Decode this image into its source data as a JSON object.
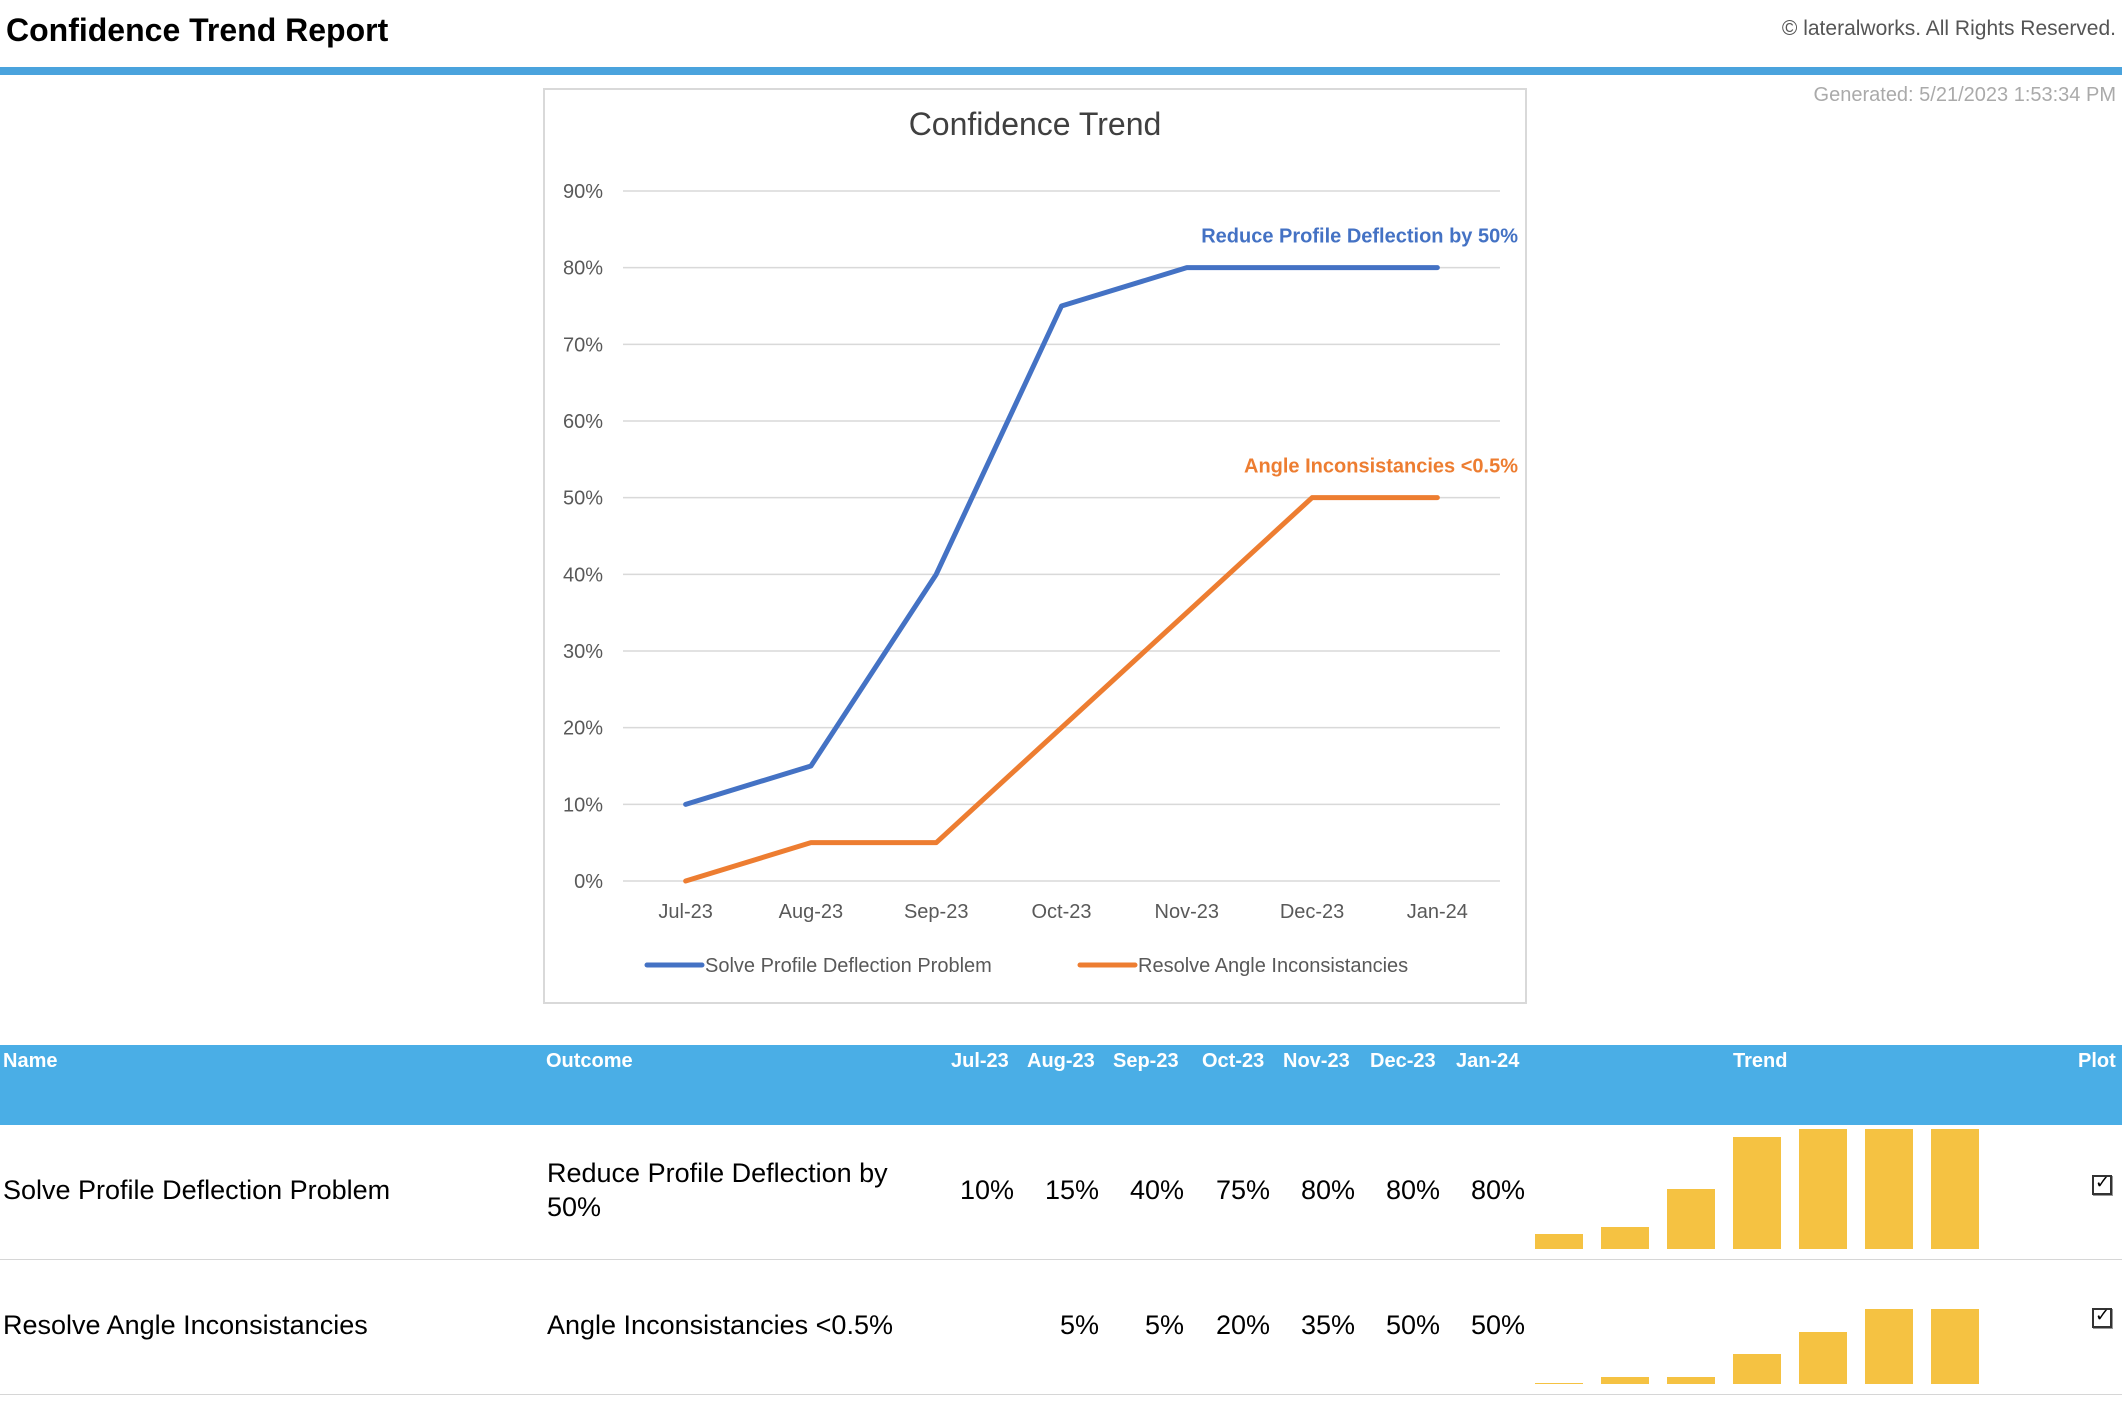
{
  "header": {
    "title": "Confidence Trend Report",
    "copyright": "© lateralworks. All Rights Reserved.",
    "generated": "Generated: 5/21/2023 1:53:34 PM"
  },
  "chart_data": {
    "type": "line",
    "title": "Confidence Trend",
    "categories": [
      "Jul-23",
      "Aug-23",
      "Sep-23",
      "Oct-23",
      "Nov-23",
      "Dec-23",
      "Jan-24"
    ],
    "ylim": [
      0,
      90
    ],
    "yticks": [
      "0%",
      "10%",
      "20%",
      "30%",
      "40%",
      "50%",
      "60%",
      "70%",
      "80%",
      "90%"
    ],
    "grid": true,
    "legend_position": "bottom",
    "series": [
      {
        "name": "Solve Profile Deflection Problem",
        "values": [
          10,
          15,
          40,
          75,
          80,
          80,
          80
        ],
        "color": "#4472c4",
        "end_label": "Reduce Profile Deflection by 50%"
      },
      {
        "name": "Resolve Angle Inconsistancies",
        "values": [
          0,
          5,
          5,
          20,
          35,
          50,
          50
        ],
        "color": "#ed7d31",
        "end_label": "Angle Inconsistancies <0.5%"
      }
    ]
  },
  "table": {
    "headers": {
      "name": "Name",
      "outcome": "Outcome",
      "months": [
        "Jul-23",
        "Aug-23",
        "Sep-23",
        "Oct-23",
        "Nov-23",
        "Dec-23",
        "Jan-24"
      ],
      "trend": "Trend",
      "plot": "Plot"
    },
    "rows": [
      {
        "name": "Solve Profile Deflection Problem",
        "outcome": "Reduce Profile Deflection by 50%",
        "values": [
          "10%",
          "15%",
          "40%",
          "75%",
          "80%",
          "80%",
          "80%"
        ],
        "trend": [
          10,
          15,
          40,
          75,
          80,
          80,
          80
        ],
        "plot_checked": true
      },
      {
        "name": "Resolve Angle Inconsistancies",
        "outcome": "Angle Inconsistancies <0.5%",
        "values": [
          "",
          "5%",
          "5%",
          "20%",
          "35%",
          "50%",
          "50%"
        ],
        "trend": [
          0,
          5,
          5,
          20,
          35,
          50,
          50
        ],
        "plot_checked": true
      }
    ],
    "trend_color": "#f5c242"
  }
}
